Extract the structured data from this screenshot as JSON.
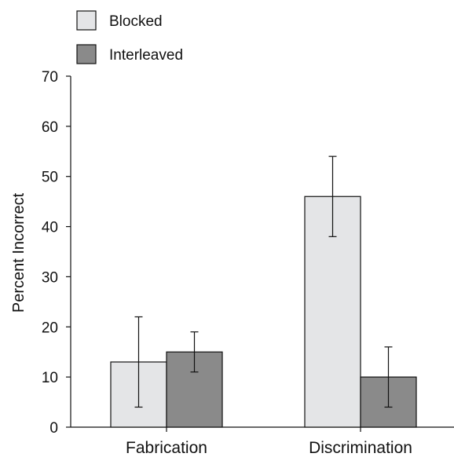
{
  "chart_data": {
    "type": "bar",
    "categories": [
      "Fabrication",
      "Discrimination"
    ],
    "series": [
      {
        "name": "Blocked",
        "values": [
          13,
          46
        ],
        "error_low": [
          4,
          38
        ],
        "error_high": [
          22,
          54
        ],
        "color": "#e4e5e7"
      },
      {
        "name": "Interleaved",
        "values": [
          15,
          10
        ],
        "error_low": [
          11,
          4
        ],
        "error_high": [
          19,
          16
        ],
        "color": "#8a8a8a"
      }
    ],
    "xlabel": "",
    "ylabel": "Percent Incorrect",
    "ylim": [
      0,
      70
    ],
    "yticks": [
      0,
      10,
      20,
      30,
      40,
      50,
      60,
      70
    ],
    "grid": false,
    "legend_position": "top-left"
  }
}
